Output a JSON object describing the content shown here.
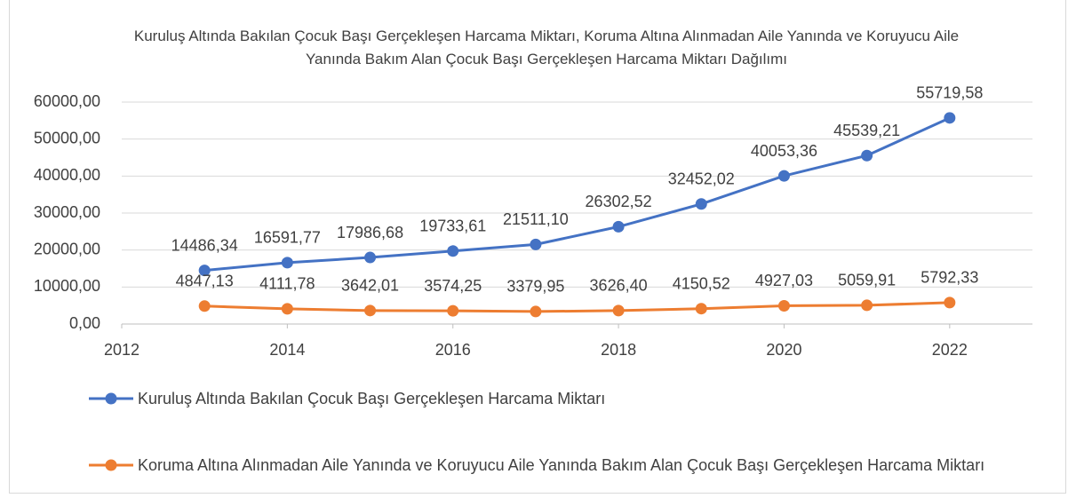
{
  "chart_data": {
    "type": "line",
    "title": "Kuruluş Altında Bakılan Çocuk Başı Gerçekleşen Harcama Miktarı, Koruma Altına Alınmadan Aile Yanında ve Koruyucu Aile Yanında Bakım Alan Çocuk Başı Gerçekleşen Harcama Miktarı Dağılımı",
    "x": [
      2013,
      2014,
      2015,
      2016,
      2017,
      2018,
      2019,
      2020,
      2021,
      2022
    ],
    "series": [
      {
        "name": "Kuruluş Altında Bakılan Çocuk Başı Gerçekleşen Harcama Miktarı",
        "color": "#4472c4",
        "values": [
          14486.34,
          16591.77,
          17986.68,
          19733.61,
          21511.1,
          26302.52,
          32452.02,
          40053.36,
          45539.21,
          55719.58
        ],
        "value_labels": [
          "14486,34",
          "16591,77",
          "17986,68",
          "19733,61",
          "21511,10",
          "26302,52",
          "32452,02",
          "40053,36",
          "45539,21",
          "55719,58"
        ]
      },
      {
        "name": "Koruma Altına Alınmadan Aile Yanında ve Koruyucu Aile Yanında Bakım Alan Çocuk Başı Gerçekleşen Harcama Miktarı",
        "color": "#ed7d31",
        "values": [
          4847.13,
          4111.78,
          3642.01,
          3574.25,
          3379.95,
          3626.4,
          4150.52,
          4927.03,
          5059.91,
          5792.33
        ],
        "value_labels": [
          "4847,13",
          "4111,78",
          "3642,01",
          "3574,25",
          "3379,95",
          "3626,40",
          "4150,52",
          "4927,03",
          "5059,91",
          "5792,33"
        ]
      }
    ],
    "xlim": [
      2012,
      2023
    ],
    "xticks": [
      2012,
      2014,
      2016,
      2018,
      2020,
      2022
    ],
    "ylim": [
      0,
      60000
    ],
    "yticks": [
      {
        "value": 0,
        "label": "0,00"
      },
      {
        "value": 10000,
        "label": "10000,00"
      },
      {
        "value": 20000,
        "label": "20000,00"
      },
      {
        "value": 30000,
        "label": "30000,00"
      },
      {
        "value": 40000,
        "label": "40000,00"
      },
      {
        "value": 50000,
        "label": "50000,00"
      },
      {
        "value": 60000,
        "label": "60000,00"
      }
    ],
    "grid": true,
    "legend": "bottom"
  }
}
